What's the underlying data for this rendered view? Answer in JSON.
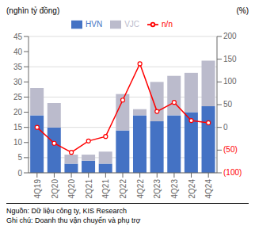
{
  "chart_data": {
    "type": "bar",
    "categories": [
      "4Q19",
      "2Q20",
      "4Q20",
      "2Q21",
      "4Q21",
      "2Q22",
      "4Q22",
      "2Q23",
      "4Q23",
      "2Q24",
      "4Q24"
    ],
    "series": [
      {
        "name": "HVN",
        "color": "#4472C4",
        "values": [
          19,
          15,
          3,
          4,
          3,
          14,
          19,
          17,
          19,
          20,
          22
        ]
      },
      {
        "name": "VJC",
        "color": "#BBBBCC",
        "values": [
          9,
          8,
          3,
          2,
          4,
          12,
          2,
          13,
          13,
          13,
          15
        ]
      },
      {
        "name": "n/n",
        "type": "line",
        "axis": "y2",
        "color": "#FF0000",
        "marker": "circle",
        "values": [
          0,
          -35,
          -55,
          -30,
          -20,
          60,
          140,
          35,
          55,
          15,
          10
        ]
      }
    ],
    "stacked": true,
    "ylabel": "(nghìn tỷ đồng)",
    "y2label": "(%)",
    "ylim": [
      0,
      45
    ],
    "yticks": [
      0,
      5,
      10,
      15,
      20,
      25,
      30,
      35,
      40,
      45
    ],
    "y2lim": [
      -100,
      200
    ],
    "y2ticks": [
      {
        "value": -100,
        "label": "(100)"
      },
      {
        "value": -50,
        "label": "(50)"
      },
      0,
      50,
      100,
      150,
      200
    ],
    "grid": true,
    "legend": "top",
    "annotations": [
      "Nguồn: Dữ liệu công ty, KIS Research",
      "Ghi chú: Doanh thu vận chuyển và phụ trợ"
    ]
  }
}
